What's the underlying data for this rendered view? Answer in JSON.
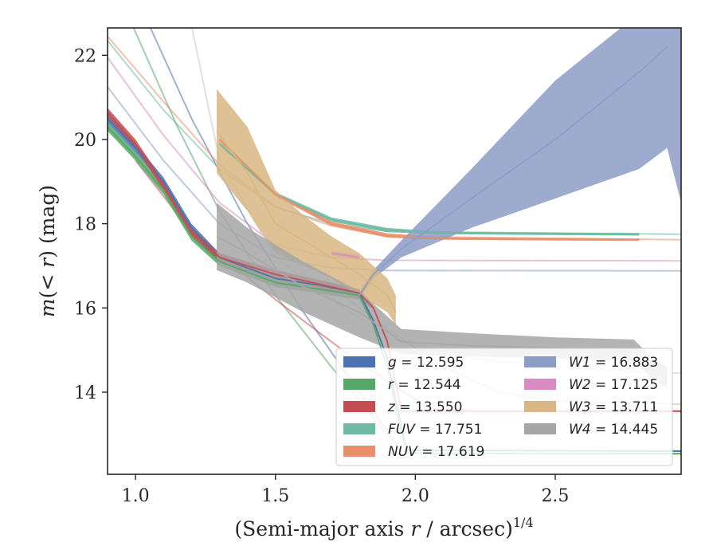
{
  "chart_data": {
    "type": "line",
    "title": "",
    "xlabel": "(Semi-major axis r / arcsec)",
    "xlabel_parts": {
      "prefix": "(Semi-major axis ",
      "var": "r",
      "suffix": " / arcsec)",
      "exponent": "1/4"
    },
    "ylabel": "m(< r) (mag)",
    "ylabel_parts": {
      "var": "m",
      "open": "(",
      "lt": "< ",
      "var2": "r",
      "close": ")",
      "unit": " (mag)"
    },
    "xlim": [
      0.9,
      2.95
    ],
    "ylim": [
      22.65,
      12.05
    ],
    "y_inverted": true,
    "xticks": [
      1.0,
      1.5,
      2.0,
      2.5
    ],
    "xtick_labels": [
      "1.0",
      "1.5",
      "2.0",
      "2.5"
    ],
    "yticks": [
      14,
      16,
      18,
      20,
      22
    ],
    "ytick_labels": [
      "14",
      "16",
      "18",
      "20",
      "22"
    ],
    "grid": false,
    "legend_position": "lower-right",
    "legend": [
      {
        "band": "g",
        "text": " = 12.595",
        "color": "#4c72b0"
      },
      {
        "band": "r",
        "text": " = 12.544",
        "color": "#55a868"
      },
      {
        "band": "z",
        "text": " = 13.550",
        "color": "#c44e52"
      },
      {
        "band": "FUV",
        "text": " = 17.751",
        "color": "#6dbba3"
      },
      {
        "band": "NUV",
        "text": " = 17.619",
        "color": "#e8906b"
      },
      {
        "band": "W1",
        "text": " = 16.883",
        "color": "#8c9dc6"
      },
      {
        "band": "W2",
        "text": " = 17.125",
        "color": "#d98cc4"
      },
      {
        "band": "W3",
        "text": " = 13.711",
        "color": "#d8b784"
      },
      {
        "band": "W4",
        "text": " = 14.445",
        "color": "#a6a6a6"
      }
    ],
    "series": [
      {
        "name": "g",
        "color": "#4c72b0",
        "data": [
          [
            0.9,
            20.5
          ],
          [
            1.0,
            19.8
          ],
          [
            1.1,
            19.0
          ],
          [
            1.2,
            17.9
          ],
          [
            1.3,
            17.2
          ],
          [
            1.5,
            16.7
          ],
          [
            1.65,
            16.55
          ],
          [
            1.8,
            16.35
          ],
          [
            1.85,
            15.7
          ],
          [
            1.9,
            14.8
          ],
          [
            1.93,
            13.8
          ],
          [
            1.97,
            12.62
          ],
          [
            2.5,
            12.61
          ],
          [
            2.95,
            12.6
          ]
        ],
        "band": [
          [
            0.9,
            20.4,
            20.6
          ],
          [
            1.0,
            19.7,
            19.9
          ],
          [
            1.1,
            18.9,
            19.1
          ],
          [
            1.2,
            17.8,
            18.0
          ],
          [
            1.3,
            17.1,
            17.3
          ],
          [
            1.5,
            16.6,
            16.8
          ],
          [
            1.65,
            16.45,
            16.65
          ],
          [
            1.8,
            16.25,
            16.45
          ],
          [
            1.85,
            15.65,
            15.75
          ],
          [
            1.9,
            14.75,
            14.85
          ],
          [
            1.93,
            13.75,
            13.85
          ],
          [
            1.97,
            12.6,
            12.64
          ],
          [
            2.5,
            12.59,
            12.63
          ],
          [
            2.95,
            12.58,
            12.62
          ]
        ]
      },
      {
        "name": "r",
        "color": "#55a868",
        "data": [
          [
            0.9,
            20.3
          ],
          [
            1.0,
            19.6
          ],
          [
            1.1,
            18.8
          ],
          [
            1.2,
            17.7
          ],
          [
            1.3,
            17.1
          ],
          [
            1.5,
            16.6
          ],
          [
            1.65,
            16.45
          ],
          [
            1.8,
            16.3
          ],
          [
            1.85,
            15.6
          ],
          [
            1.9,
            14.6
          ],
          [
            1.93,
            13.6
          ],
          [
            1.97,
            12.55
          ],
          [
            2.5,
            12.54
          ],
          [
            2.95,
            12.54
          ]
        ],
        "band": [
          [
            0.9,
            20.2,
            20.4
          ],
          [
            1.0,
            19.5,
            19.7
          ],
          [
            1.1,
            18.7,
            18.9
          ],
          [
            1.2,
            17.6,
            17.8
          ],
          [
            1.3,
            17.0,
            17.2
          ],
          [
            1.5,
            16.5,
            16.7
          ],
          [
            1.65,
            16.35,
            16.55
          ],
          [
            1.8,
            16.2,
            16.4
          ],
          [
            1.85,
            15.55,
            15.65
          ],
          [
            1.9,
            14.55,
            14.65
          ],
          [
            1.93,
            13.55,
            13.65
          ],
          [
            1.97,
            12.53,
            12.57
          ],
          [
            2.5,
            12.52,
            12.56
          ],
          [
            2.95,
            12.52,
            12.56
          ]
        ]
      },
      {
        "name": "z",
        "color": "#c44e52",
        "data": [
          [
            0.9,
            20.65
          ],
          [
            1.0,
            19.9
          ],
          [
            1.1,
            18.9
          ],
          [
            1.2,
            17.8
          ],
          [
            1.3,
            17.2
          ],
          [
            1.5,
            16.8
          ],
          [
            1.8,
            16.35
          ],
          [
            1.85,
            16.0
          ],
          [
            1.9,
            15.2
          ],
          [
            1.95,
            13.55
          ],
          [
            2.05,
            13.55
          ],
          [
            2.95,
            13.55
          ]
        ],
        "band": [
          [
            0.9,
            20.55,
            20.75
          ],
          [
            1.0,
            19.8,
            20.0
          ],
          [
            1.1,
            18.8,
            19.0
          ],
          [
            1.2,
            17.7,
            17.9
          ],
          [
            1.3,
            17.1,
            17.3
          ],
          [
            1.5,
            16.7,
            16.9
          ],
          [
            1.8,
            16.25,
            16.45
          ],
          [
            1.85,
            15.95,
            16.05
          ],
          [
            1.9,
            15.15,
            15.25
          ],
          [
            1.95,
            13.53,
            13.57
          ],
          [
            2.05,
            13.53,
            13.57
          ],
          [
            2.95,
            13.53,
            13.57
          ]
        ]
      },
      {
        "name": "FUV",
        "color": "#6dbba3",
        "data": [
          [
            1.3,
            19.9
          ],
          [
            1.5,
            18.7
          ],
          [
            1.7,
            18.1
          ],
          [
            1.9,
            17.85
          ],
          [
            2.1,
            17.78
          ],
          [
            2.5,
            17.76
          ],
          [
            2.8,
            17.75
          ]
        ],
        "band": [
          [
            1.3,
            19.85,
            19.95
          ],
          [
            1.5,
            18.65,
            18.75
          ],
          [
            1.7,
            18.05,
            18.15
          ],
          [
            1.9,
            17.8,
            17.9
          ],
          [
            2.1,
            17.75,
            17.81
          ],
          [
            2.5,
            17.73,
            17.79
          ],
          [
            2.8,
            17.72,
            17.78
          ]
        ]
      },
      {
        "name": "NUV",
        "color": "#e8906b",
        "data": [
          [
            1.3,
            20.0
          ],
          [
            1.5,
            18.7
          ],
          [
            1.7,
            18.0
          ],
          [
            1.9,
            17.72
          ],
          [
            2.1,
            17.65
          ],
          [
            2.5,
            17.63
          ],
          [
            2.8,
            17.62
          ]
        ],
        "band": [
          [
            1.3,
            19.95,
            20.05
          ],
          [
            1.5,
            18.65,
            18.75
          ],
          [
            1.7,
            17.95,
            18.05
          ],
          [
            1.9,
            17.67,
            17.77
          ],
          [
            2.1,
            17.62,
            17.68
          ],
          [
            2.5,
            17.6,
            17.66
          ],
          [
            2.8,
            17.59,
            17.65
          ]
        ]
      },
      {
        "name": "W1",
        "color": "#8c9dc6",
        "data": [
          [
            1.8,
            16.3
          ],
          [
            1.85,
            16.8
          ],
          [
            1.95,
            17.4
          ],
          [
            2.2,
            18.6
          ],
          [
            2.5,
            20.0
          ],
          [
            2.8,
            21.6
          ],
          [
            2.9,
            22.2
          ]
        ],
        "band": [
          [
            1.8,
            16.2,
            16.4
          ],
          [
            1.85,
            16.7,
            16.9
          ],
          [
            1.95,
            17.2,
            17.6
          ],
          [
            2.2,
            17.9,
            19.3
          ],
          [
            2.5,
            18.6,
            21.4
          ],
          [
            2.8,
            19.3,
            23.0
          ],
          [
            2.9,
            19.8,
            23.0
          ],
          [
            2.95,
            18.5,
            23.0
          ]
        ]
      },
      {
        "name": "W2",
        "color": "#d98cc4",
        "data": [
          [
            1.7,
            17.3
          ],
          [
            1.75,
            17.25
          ],
          [
            1.8,
            17.2
          ]
        ],
        "band": [
          [
            1.7,
            17.25,
            17.35
          ],
          [
            1.75,
            17.2,
            17.3
          ],
          [
            1.8,
            17.15,
            17.25
          ]
        ]
      },
      {
        "name": "W3",
        "color": "#d8b784",
        "data": [
          [
            1.29,
            20.2
          ],
          [
            1.4,
            19.2
          ],
          [
            1.5,
            18.0
          ],
          [
            1.6,
            17.6
          ],
          [
            1.7,
            17.2
          ],
          [
            1.8,
            16.8
          ],
          [
            1.9,
            16.3
          ],
          [
            1.93,
            15.9
          ]
        ],
        "band": [
          [
            1.29,
            19.2,
            21.2
          ],
          [
            1.4,
            18.3,
            20.3
          ],
          [
            1.5,
            17.3,
            18.8
          ],
          [
            1.6,
            17.0,
            18.2
          ],
          [
            1.7,
            16.7,
            17.7
          ],
          [
            1.8,
            16.3,
            17.3
          ],
          [
            1.9,
            15.9,
            16.7
          ],
          [
            1.93,
            15.6,
            16.3
          ]
        ]
      },
      {
        "name": "W4",
        "color": "#a6a6a6",
        "data": [
          [
            1.29,
            17.7
          ],
          [
            1.4,
            17.3
          ],
          [
            1.6,
            16.5
          ],
          [
            1.8,
            15.9
          ],
          [
            1.95,
            15.2
          ],
          [
            2.2,
            15.1
          ],
          [
            2.5,
            15.05
          ],
          [
            2.78,
            14.95
          ],
          [
            2.85,
            14.55
          ],
          [
            2.9,
            14.35
          ]
        ],
        "band": [
          [
            1.29,
            16.9,
            18.5
          ],
          [
            1.4,
            16.6,
            17.9
          ],
          [
            1.6,
            15.9,
            17.1
          ],
          [
            1.8,
            15.3,
            16.4
          ],
          [
            1.95,
            14.9,
            15.5
          ],
          [
            2.2,
            14.85,
            15.4
          ],
          [
            2.5,
            14.8,
            15.3
          ],
          [
            2.78,
            14.75,
            15.25
          ],
          [
            2.85,
            14.3,
            14.8
          ],
          [
            2.9,
            14.1,
            14.6
          ]
        ]
      }
    ],
    "background_curves": [
      {
        "band": "g",
        "color": "#4c72b0",
        "data": [
          [
            1.05,
            22.7
          ],
          [
            1.2,
            20.5
          ],
          [
            1.4,
            18.0
          ],
          [
            1.6,
            15.9
          ],
          [
            1.8,
            14.0
          ],
          [
            1.92,
            12.9
          ],
          [
            1.95,
            12.62
          ]
        ]
      },
      {
        "band": "r",
        "color": "#55a868",
        "data": [
          [
            0.99,
            22.7
          ],
          [
            1.15,
            20.3
          ],
          [
            1.3,
            18.3
          ],
          [
            1.5,
            16.3
          ],
          [
            1.7,
            14.6
          ],
          [
            1.85,
            13.4
          ],
          [
            1.95,
            12.58
          ]
        ]
      },
      {
        "band": "z",
        "color": "#c44e52",
        "data": [
          [
            1.0,
            19.5
          ],
          [
            1.2,
            17.8
          ],
          [
            1.5,
            16.2
          ],
          [
            1.8,
            14.7
          ],
          [
            2.05,
            13.6
          ],
          [
            2.2,
            13.55
          ]
        ]
      },
      {
        "band": "FUV",
        "color": "#6dbba3",
        "data": [
          [
            0.9,
            22.35
          ],
          [
            1.1,
            20.7
          ],
          [
            1.3,
            19.3
          ],
          [
            1.5,
            18.4
          ],
          [
            1.7,
            18.0
          ],
          [
            1.9,
            17.82
          ],
          [
            2.95,
            17.75
          ]
        ]
      },
      {
        "band": "NUV",
        "color": "#e8906b",
        "data": [
          [
            0.9,
            22.45
          ],
          [
            1.1,
            20.9
          ],
          [
            1.3,
            19.4
          ],
          [
            1.5,
            18.4
          ],
          [
            1.7,
            17.95
          ],
          [
            1.9,
            17.7
          ],
          [
            2.95,
            17.62
          ]
        ]
      },
      {
        "band": "W1",
        "color": "#8c9dc6",
        "data": [
          [
            0.9,
            21.25
          ],
          [
            1.1,
            19.5
          ],
          [
            1.3,
            18.0
          ],
          [
            1.5,
            17.2
          ],
          [
            1.7,
            16.95
          ],
          [
            1.9,
            16.89
          ],
          [
            2.95,
            16.88
          ]
        ]
      },
      {
        "band": "W2",
        "color": "#d98cc4",
        "data": [
          [
            0.9,
            21.95
          ],
          [
            1.1,
            20.1
          ],
          [
            1.3,
            18.5
          ],
          [
            1.5,
            17.5
          ],
          [
            1.7,
            17.2
          ],
          [
            1.9,
            17.13
          ],
          [
            2.95,
            17.12
          ]
        ]
      },
      {
        "band": "W3",
        "color": "#d8b784",
        "data": [
          [
            1.7,
            16.5
          ],
          [
            1.9,
            15.5
          ],
          [
            2.1,
            14.6
          ],
          [
            2.3,
            14.0
          ],
          [
            2.5,
            13.8
          ],
          [
            2.95,
            13.71
          ]
        ]
      },
      {
        "band": "W4",
        "color": "#c8c8c8",
        "data": [
          [
            1.2,
            22.7
          ],
          [
            1.3,
            19.5
          ],
          [
            1.5,
            17.2
          ],
          [
            1.7,
            16.2
          ],
          [
            1.9,
            15.3
          ],
          [
            2.2,
            14.8
          ],
          [
            2.6,
            14.55
          ],
          [
            2.95,
            14.45
          ]
        ]
      }
    ]
  }
}
